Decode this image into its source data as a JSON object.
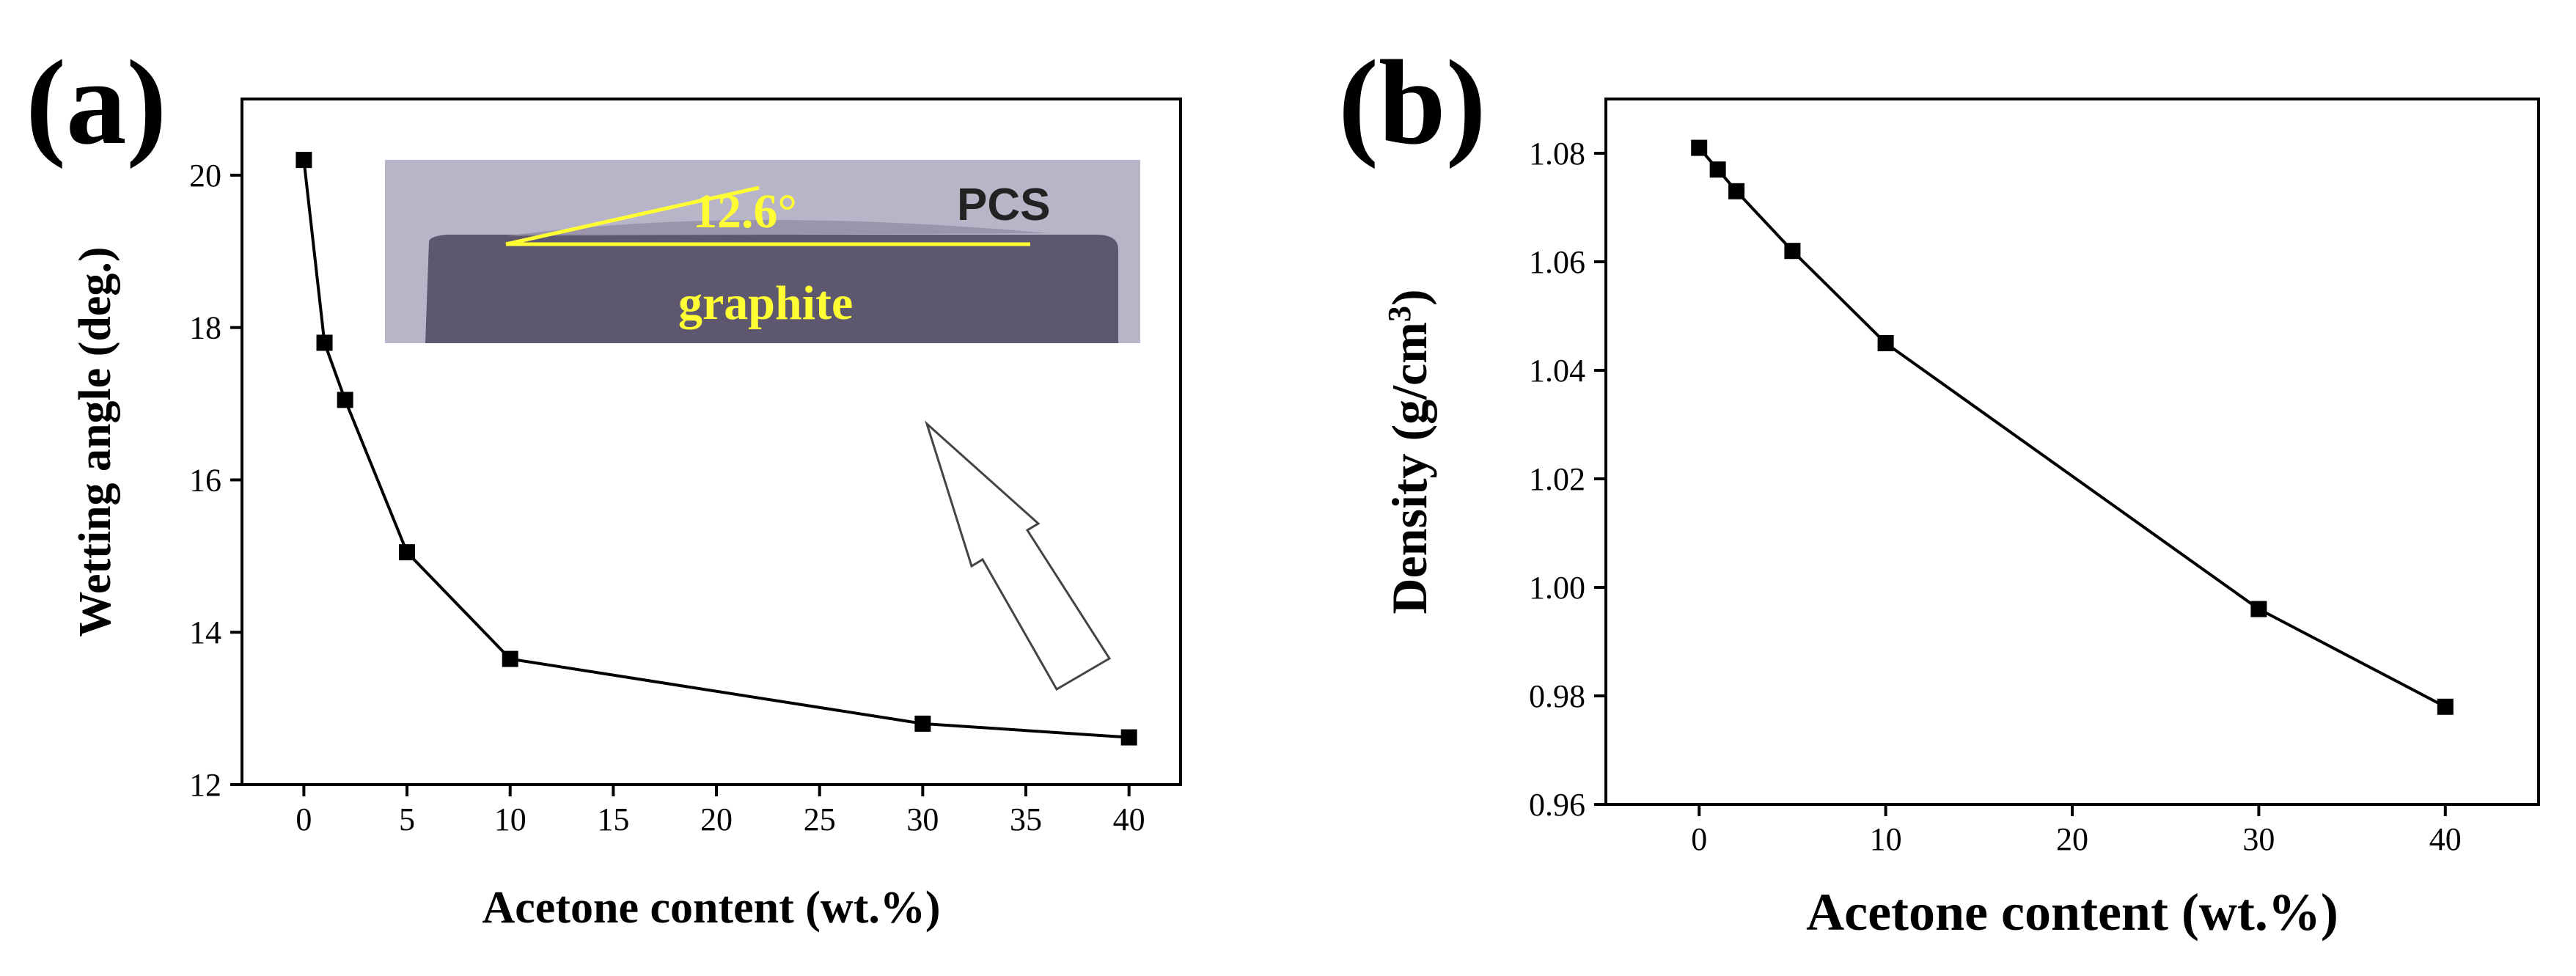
{
  "panels": {
    "a": {
      "label": "(a)"
    },
    "b": {
      "label": "(b)"
    }
  },
  "inset": {
    "angle_label": "12.6°",
    "top_label": "PCS",
    "bottom_label": "graphite"
  },
  "colors": {
    "axis": "#000000",
    "series": "#000000",
    "inset_background": "#b9b5c9",
    "inset_graphite": "#5d576f",
    "inset_text": "#ffff33",
    "inset_label_dark": "#222222",
    "arrow_fill": "#ffffff"
  },
  "chart_data": [
    {
      "type": "line",
      "panel": "a",
      "title": "",
      "xlabel": "Acetone content (wt.%)",
      "ylabel": "Wetting angle (deg.)",
      "xlim": [
        -3,
        42.5
      ],
      "ylim": [
        12,
        21
      ],
      "xticks": [
        0,
        5,
        10,
        15,
        20,
        25,
        30,
        35,
        40
      ],
      "yticks": [
        12,
        14,
        16,
        18,
        20
      ],
      "x_tick_labels": [
        "0",
        "5",
        "10",
        "15",
        "20",
        "25",
        "30",
        "35",
        "40"
      ],
      "y_tick_labels": [
        "12",
        "14",
        "16",
        "18",
        "20"
      ],
      "marker": "square",
      "series": [
        {
          "name": "Wetting angle",
          "x": [
            0,
            1,
            2,
            5,
            10,
            30,
            40
          ],
          "values": [
            20.2,
            17.8,
            17.05,
            15.05,
            13.65,
            12.8,
            12.62
          ]
        }
      ]
    },
    {
      "type": "line",
      "panel": "b",
      "title": "",
      "xlabel": "Acetone content (wt.%)",
      "ylabel": "Density (g/cm3)",
      "xlim": [
        -5,
        45
      ],
      "ylim": [
        0.96,
        1.09
      ],
      "xticks": [
        0,
        10,
        20,
        30,
        40
      ],
      "yticks": [
        0.96,
        0.98,
        1.0,
        1.02,
        1.04,
        1.06,
        1.08
      ],
      "x_tick_labels": [
        "0",
        "10",
        "20",
        "30",
        "40"
      ],
      "y_tick_labels": [
        "0.96",
        "0.98",
        "1.00",
        "1.02",
        "1.04",
        "1.06",
        "1.08"
      ],
      "marker": "square",
      "series": [
        {
          "name": "Density",
          "x": [
            0,
            1,
            2,
            5,
            10,
            30,
            40
          ],
          "values": [
            1.081,
            1.077,
            1.073,
            1.062,
            1.045,
            0.996,
            0.978
          ]
        }
      ]
    }
  ]
}
